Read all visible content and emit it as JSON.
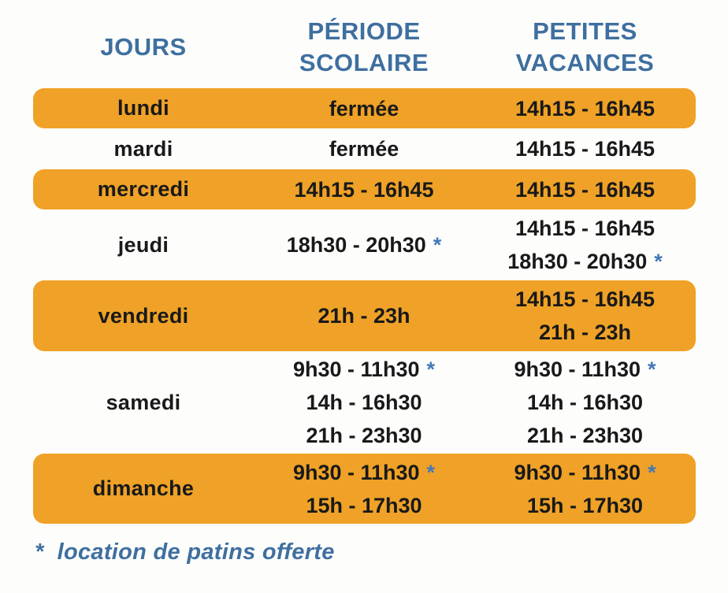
{
  "table": {
    "headers": {
      "jours": "JOURS",
      "periode_scolaire": "PÉRIODE SCOLAIRE",
      "petites_vacances": "PETITES VACANCES"
    },
    "rows": [
      {
        "day": "lundi",
        "highlighted": true,
        "periode_scolaire": {
          "lines": [
            {
              "time": "fermée"
            }
          ]
        },
        "petites_vacances": {
          "lines": [
            {
              "time": "14h15 - 16h45"
            }
          ]
        }
      },
      {
        "day": "mardi",
        "highlighted": false,
        "periode_scolaire": {
          "lines": [
            {
              "time": "fermée"
            }
          ]
        },
        "petites_vacances": {
          "lines": [
            {
              "time": "14h15 - 16h45"
            }
          ]
        }
      },
      {
        "day": "mercredi",
        "highlighted": true,
        "periode_scolaire": {
          "lines": [
            {
              "time": "14h15 - 16h45"
            }
          ]
        },
        "petites_vacances": {
          "lines": [
            {
              "time": "14h15 - 16h45"
            }
          ]
        }
      },
      {
        "day": "jeudi",
        "highlighted": false,
        "periode_scolaire": {
          "lines": [
            {
              "time": "18h30 - 20h30",
              "star": "*"
            }
          ]
        },
        "petites_vacances": {
          "lines": [
            {
              "time": "14h15 - 16h45"
            },
            {
              "time": "18h30 - 20h30",
              "star": "*"
            }
          ]
        }
      },
      {
        "day": "vendredi",
        "highlighted": true,
        "periode_scolaire": {
          "lines": [
            {
              "time": "21h - 23h"
            }
          ]
        },
        "petites_vacances": {
          "lines": [
            {
              "time": "14h15 - 16h45"
            },
            {
              "time": "21h - 23h"
            }
          ]
        }
      },
      {
        "day": "samedi",
        "highlighted": false,
        "periode_scolaire": {
          "lines": [
            {
              "time": "9h30 - 11h30",
              "star": "*"
            },
            {
              "time": "14h - 16h30"
            },
            {
              "time": "21h - 23h30"
            }
          ]
        },
        "petites_vacances": {
          "lines": [
            {
              "time": "9h30 - 11h30",
              "star": "*"
            },
            {
              "time": "14h - 16h30"
            },
            {
              "time": "21h - 23h30"
            }
          ]
        }
      },
      {
        "day": "dimanche",
        "highlighted": true,
        "periode_scolaire": {
          "lines": [
            {
              "time": "9h30 - 11h30",
              "star": "*"
            },
            {
              "time": "15h - 17h30"
            }
          ]
        },
        "petites_vacances": {
          "lines": [
            {
              "time": "9h30 - 11h30",
              "star": "*"
            },
            {
              "time": "15h - 17h30"
            }
          ]
        }
      }
    ]
  },
  "footnote": {
    "symbol": "*",
    "text": "location de patins offerte"
  },
  "colors": {
    "highlight_orange": "#efa227",
    "header_blue": "#3e6f9f",
    "asterisk_blue": "#4478b8",
    "text_black": "#191919",
    "background": "#fdfdfc"
  }
}
